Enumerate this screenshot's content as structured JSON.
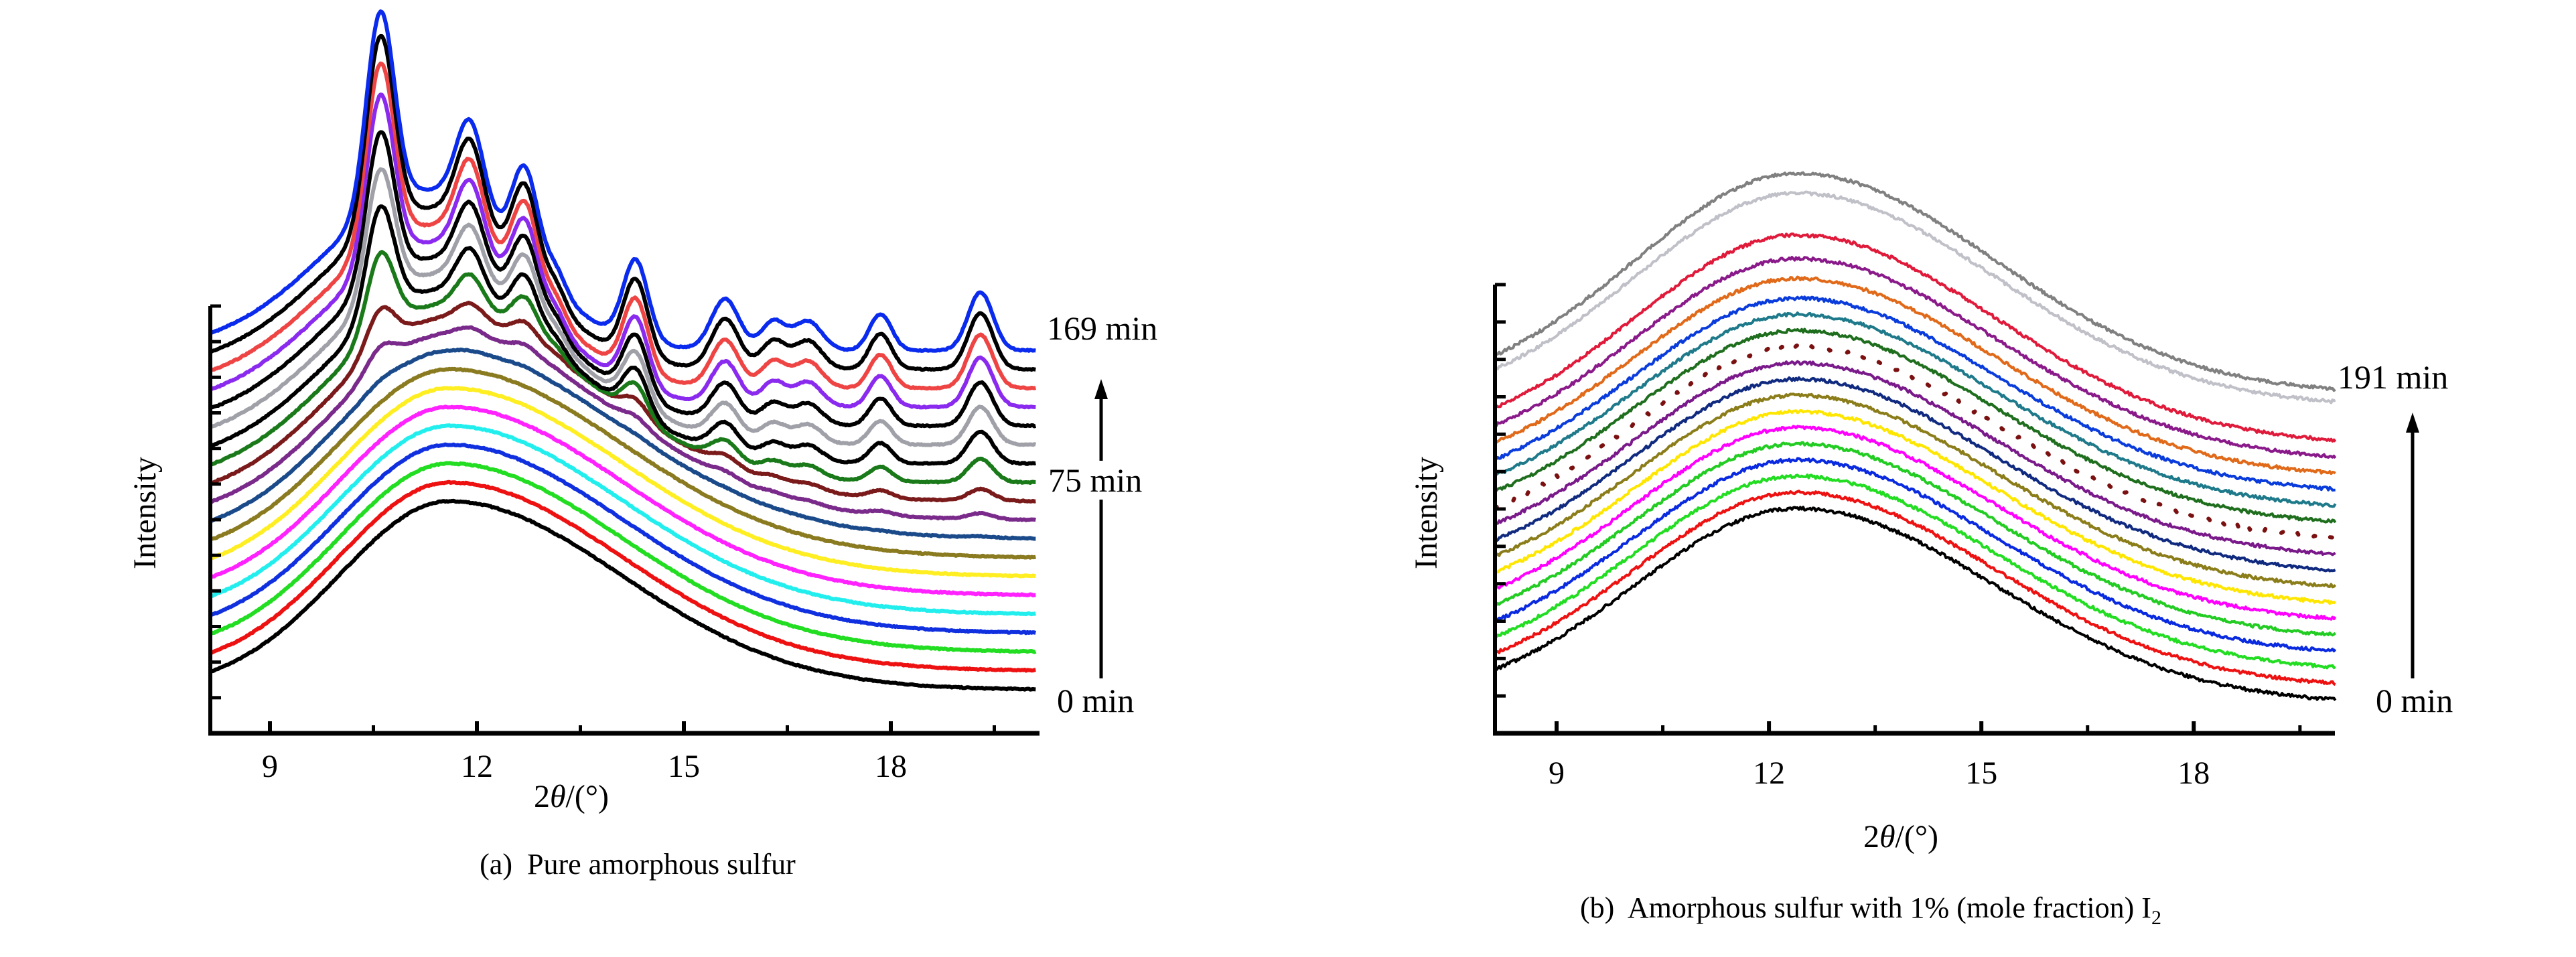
{
  "chart_data": [
    {
      "type": "line",
      "panel": "a",
      "title": "(a)  Pure amorphous sulfur",
      "xlabel_prefix": "2",
      "xlabel_symbol": "θ",
      "xlabel_suffix": "/(°)",
      "ylabel": "Intensity",
      "xlim": [
        8.13,
        20.1
      ],
      "ylim": [
        0,
        100
      ],
      "xticks": [
        9,
        12,
        15,
        18
      ],
      "xtick_labels": [
        "9",
        "12",
        "15",
        "18"
      ],
      "xminor_ticks": [
        10.5,
        13.5,
        16.5,
        19.5
      ],
      "ytick_count": 12,
      "annotations": {
        "top": "169 min",
        "middle": "75 min",
        "bottom": "0 min"
      },
      "amorphous_hump": {
        "baseline": 6,
        "amp": 26,
        "center": 11.6,
        "sigma_left": 1.6,
        "sigma_right": 2.5
      },
      "crystalline_hump": {
        "baseline": 6,
        "amp": 22,
        "center": 11.3,
        "sigma_left": 1.5,
        "sigma_right": 1.3
      },
      "peaks": [
        [
          10.6,
          27,
          0.2
        ],
        [
          11.9,
          12,
          0.2
        ],
        [
          12.7,
          13,
          0.19
        ],
        [
          13.15,
          3,
          0.15
        ],
        [
          14.3,
          11,
          0.18
        ],
        [
          15.6,
          7,
          0.2
        ],
        [
          16.3,
          4,
          0.18
        ],
        [
          16.8,
          4,
          0.2
        ],
        [
          17.85,
          5,
          0.16
        ],
        [
          19.3,
          8,
          0.18
        ]
      ],
      "noise": 0.15,
      "series": [
        {
          "color": "#000000",
          "offset": 0.0,
          "crystallinity": 0
        },
        {
          "color": "#ee1111",
          "offset": 2.6,
          "crystallinity": 0
        },
        {
          "color": "#22dd22",
          "offset": 5.2,
          "crystallinity": 0
        },
        {
          "color": "#1030e0",
          "offset": 7.8,
          "crystallinity": 0
        },
        {
          "color": "#22eeee",
          "offset": 10.4,
          "crystallinity": 0
        },
        {
          "color": "#ff22ff",
          "offset": 13.0,
          "crystallinity": 0
        },
        {
          "color": "#ffee22",
          "offset": 15.6,
          "crystallinity": 0
        },
        {
          "color": "#8a7a20",
          "offset": 18.2,
          "crystallinity": 0
        },
        {
          "color": "#1a4a8a",
          "offset": 20.8,
          "crystallinity": 0.02
        },
        {
          "color": "#7a2a8a",
          "offset": 23.4,
          "crystallinity": 0.1
        },
        {
          "color": "#7a1a1a",
          "offset": 26.0,
          "crystallinity": 0.2
        },
        {
          "color": "#1a7a1a",
          "offset": 28.6,
          "crystallinity": 0.4
        },
        {
          "color": "#000000",
          "offset": 31.2,
          "crystallinity": 0.55
        },
        {
          "color": "#a0a0a8",
          "offset": 33.8,
          "crystallinity": 0.65
        },
        {
          "color": "#000000",
          "offset": 36.4,
          "crystallinity": 0.75
        },
        {
          "color": "#8a2aee",
          "offset": 39.0,
          "crystallinity": 0.85
        },
        {
          "color": "#ee4444",
          "offset": 41.6,
          "crystallinity": 0.92
        },
        {
          "color": "#000000",
          "offset": 44.2,
          "crystallinity": 0.97
        },
        {
          "color": "#0a2aee",
          "offset": 46.8,
          "crystallinity": 1.0
        }
      ]
    },
    {
      "type": "line",
      "panel": "b",
      "title": "(b)  Amorphous sulfur with 1% (mole fraction) I",
      "title_subscript": "2",
      "xlabel_prefix": "2",
      "xlabel_symbol": "θ",
      "xlabel_suffix": "/(°)",
      "ylabel": "Intensity",
      "xlim": [
        8.13,
        20.0
      ],
      "ylim": [
        0,
        100
      ],
      "xticks": [
        9,
        12,
        15,
        18
      ],
      "xtick_labels": [
        "9",
        "12",
        "15",
        "18"
      ],
      "xminor_ticks": [
        10.5,
        13.5,
        16.5,
        19.5
      ],
      "ytick_count": 12,
      "annotations": {
        "top": "191 min",
        "bottom": "0 min"
      },
      "amorphous_hump": {
        "baseline": 4,
        "amp": 27,
        "center": 12.4,
        "sigma_left": 2.3,
        "sigma_right": 2.8
      },
      "noise": 0.45,
      "series": [
        {
          "color": "#000000",
          "offset": 0.0,
          "amp": 27
        },
        {
          "color": "#ee1111",
          "offset": 2.23,
          "amp": 27
        },
        {
          "color": "#22dd22",
          "offset": 4.46,
          "amp": 27
        },
        {
          "color": "#0a2ae0",
          "offset": 6.69,
          "amp": 27
        },
        {
          "color": "#22cc22",
          "offset": 8.92,
          "amp": 27
        },
        {
          "color": "#ff00ff",
          "offset": 11.15,
          "amp": 27
        },
        {
          "color": "#ffe600",
          "offset": 13.38,
          "amp": 27
        },
        {
          "color": "#8b7d1a",
          "offset": 15.61,
          "amp": 27
        },
        {
          "color": "#102a80",
          "offset": 17.84,
          "amp": 27
        },
        {
          "color": "#7a1a8a",
          "offset": 20.07,
          "amp": 27
        },
        {
          "color": "#7a1010",
          "offset": 22.3,
          "amp": 27,
          "dotted": true
        },
        {
          "color": "#1e6e1e",
          "offset": 24.53,
          "amp": 27
        },
        {
          "color": "#1e7a8a",
          "offset": 26.76,
          "amp": 27
        },
        {
          "color": "#0a3cdc",
          "offset": 28.99,
          "amp": 27
        },
        {
          "color": "#e06a1a",
          "offset": 31.22,
          "amp": 27.5
        },
        {
          "color": "#8a1a8a",
          "offset": 33.45,
          "amp": 28
        },
        {
          "color": "#e01a3a",
          "offset": 35.7,
          "amp": 29
        },
        {
          "color": "#c0c0c8",
          "offset": 41.0,
          "amp": 29.5
        },
        {
          "color": "#808080",
          "offset": 42.7,
          "amp": 30.5
        }
      ]
    }
  ]
}
